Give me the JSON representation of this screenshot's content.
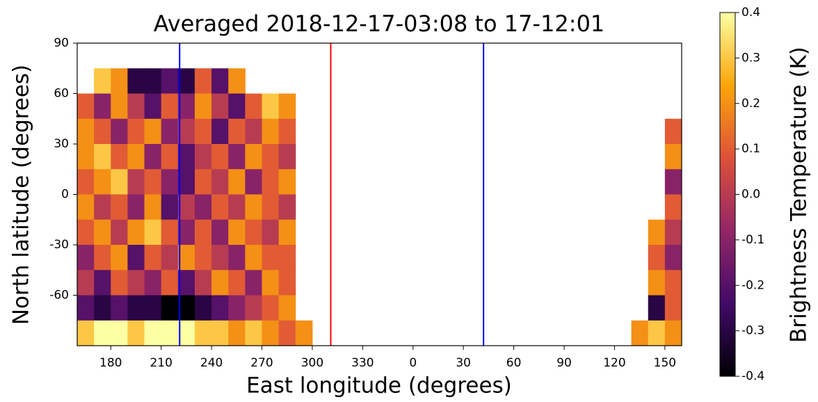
{
  "chart_data": {
    "type": "heatmap",
    "title": "Averaged 2018-12-17-03:08 to 17-12:01",
    "x_label": "East longitude (degrees)",
    "y_label": "North latitude (degrees)",
    "colorbar_label": "Brightness Temperature (K)",
    "colors": [
      "#000004",
      "#420a68",
      "#932667",
      "#dd513a",
      "#fca50a",
      "#fcffa4"
    ],
    "clim": [
      -0.4,
      0.4
    ],
    "cticks": [
      -0.4,
      -0.3,
      -0.2,
      -0.1,
      {
        "value": 0,
        "label": "0.0"
      },
      0.1,
      0.2,
      0.3,
      0.4
    ],
    "xlim": [
      160,
      520
    ],
    "xticks": [
      180,
      210,
      240,
      270,
      300,
      330,
      {
        "value": 360,
        "label": "0"
      },
      {
        "value": 390,
        "label": "30"
      },
      {
        "value": 420,
        "label": "60"
      },
      {
        "value": 450,
        "label": "90"
      },
      {
        "value": 480,
        "label": "120"
      },
      {
        "value": 510,
        "label": "150"
      }
    ],
    "ylim": [
      -90,
      90
    ],
    "yticks": [
      90,
      60,
      30,
      0,
      -30,
      -60
    ],
    "x": [
      165,
      175,
      185,
      195,
      205,
      215,
      225,
      235,
      245,
      255,
      265,
      275,
      285,
      295,
      305,
      315,
      325,
      335,
      345,
      355,
      365,
      375,
      385,
      395,
      405,
      415,
      425,
      435,
      445,
      455,
      465,
      475,
      485,
      495,
      505,
      515
    ],
    "y": [
      82.5,
      67.5,
      52.5,
      37.5,
      22.5,
      7.5,
      -7.5,
      -22.5,
      -37.5,
      -52.5,
      -67.5,
      -82.5
    ],
    "values": [
      [
        null,
        null,
        null,
        null,
        null,
        null,
        null,
        null,
        null,
        null,
        null,
        null,
        null,
        null,
        null,
        null,
        null,
        null,
        null,
        null,
        null,
        null,
        null,
        null,
        null,
        null,
        null,
        null,
        null,
        null,
        null,
        null,
        null,
        null,
        null,
        null
      ],
      [
        null,
        0.3,
        0.2,
        -0.3,
        -0.3,
        -0.2,
        -0.3,
        0.1,
        -0.2,
        0.2,
        null,
        null,
        null,
        null,
        null,
        null,
        null,
        null,
        null,
        null,
        null,
        null,
        null,
        null,
        null,
        null,
        null,
        null,
        null,
        null,
        null,
        null,
        null,
        null,
        null,
        null
      ],
      [
        0.1,
        -0.1,
        0.2,
        0.0,
        -0.2,
        0.1,
        -0.1,
        0.2,
        0.0,
        -0.2,
        0.1,
        0.3,
        0.2,
        null,
        null,
        null,
        null,
        null,
        null,
        null,
        null,
        null,
        null,
        null,
        null,
        null,
        null,
        null,
        null,
        null,
        null,
        null,
        null,
        null,
        null,
        null
      ],
      [
        0.2,
        0.1,
        -0.1,
        0.1,
        0.2,
        -0.1,
        0.0,
        0.1,
        -0.2,
        0.1,
        0.0,
        0.2,
        0.1,
        null,
        null,
        null,
        null,
        null,
        null,
        null,
        null,
        null,
        null,
        null,
        null,
        null,
        null,
        null,
        null,
        null,
        null,
        null,
        null,
        null,
        null,
        0.1
      ],
      [
        0.2,
        0.3,
        0.1,
        0.2,
        -0.1,
        0.1,
        -0.2,
        0.0,
        0.1,
        -0.1,
        0.2,
        0.1,
        0.0,
        null,
        null,
        null,
        null,
        null,
        null,
        null,
        null,
        null,
        null,
        null,
        null,
        null,
        null,
        null,
        null,
        null,
        null,
        null,
        null,
        null,
        null,
        0.2
      ],
      [
        0.1,
        0.2,
        0.3,
        0.0,
        0.1,
        -0.1,
        -0.2,
        0.1,
        0.0,
        0.2,
        -0.1,
        0.1,
        0.2,
        null,
        null,
        null,
        null,
        null,
        null,
        null,
        null,
        null,
        null,
        null,
        null,
        null,
        null,
        null,
        null,
        null,
        null,
        null,
        null,
        null,
        null,
        -0.1
      ],
      [
        0.2,
        0.0,
        0.1,
        -0.1,
        0.2,
        -0.2,
        0.0,
        -0.1,
        0.1,
        0.0,
        0.2,
        0.1,
        0.0,
        null,
        null,
        null,
        null,
        null,
        null,
        null,
        null,
        null,
        null,
        null,
        null,
        null,
        null,
        null,
        null,
        null,
        null,
        null,
        null,
        null,
        null,
        0.1
      ],
      [
        0.1,
        0.2,
        0.0,
        0.2,
        0.3,
        0.1,
        -0.1,
        0.1,
        -0.1,
        0.2,
        0.1,
        0.0,
        0.2,
        null,
        null,
        null,
        null,
        null,
        null,
        null,
        null,
        null,
        null,
        null,
        null,
        null,
        null,
        null,
        null,
        null,
        null,
        null,
        null,
        null,
        0.2,
        0.0
      ],
      [
        -0.1,
        0.1,
        0.2,
        -0.2,
        0.1,
        0.0,
        0.2,
        0.1,
        0.0,
        -0.1,
        0.2,
        0.1,
        0.1,
        null,
        null,
        null,
        null,
        null,
        null,
        null,
        null,
        null,
        null,
        null,
        null,
        null,
        null,
        null,
        null,
        null,
        null,
        null,
        null,
        null,
        0.1,
        -0.1
      ],
      [
        0.0,
        -0.2,
        0.1,
        0.0,
        -0.1,
        0.1,
        -0.2,
        0.0,
        0.2,
        0.1,
        -0.1,
        0.2,
        0.1,
        null,
        null,
        null,
        null,
        null,
        null,
        null,
        null,
        null,
        null,
        null,
        null,
        null,
        null,
        null,
        null,
        null,
        null,
        null,
        null,
        null,
        0.2,
        0.1
      ],
      [
        -0.2,
        -0.3,
        -0.2,
        -0.3,
        -0.3,
        -0.4,
        -0.4,
        -0.3,
        -0.2,
        -0.1,
        0.0,
        0.1,
        0.2,
        null,
        null,
        null,
        null,
        null,
        null,
        null,
        null,
        null,
        null,
        null,
        null,
        null,
        null,
        null,
        null,
        null,
        null,
        null,
        null,
        null,
        -0.3,
        0.1
      ],
      [
        0.3,
        0.4,
        0.4,
        0.3,
        0.4,
        0.4,
        0.4,
        0.3,
        0.3,
        0.2,
        0.3,
        0.2,
        0.1,
        0.2,
        null,
        null,
        null,
        null,
        null,
        null,
        null,
        null,
        null,
        null,
        null,
        null,
        null,
        null,
        null,
        null,
        null,
        null,
        null,
        0.2,
        0.3,
        0.2
      ]
    ],
    "vlines": [
      {
        "x": 221,
        "color": "#0000ff"
      },
      {
        "x": 311,
        "color": "#ff0000"
      },
      {
        "x": 402,
        "color": "#0000ff"
      }
    ]
  }
}
